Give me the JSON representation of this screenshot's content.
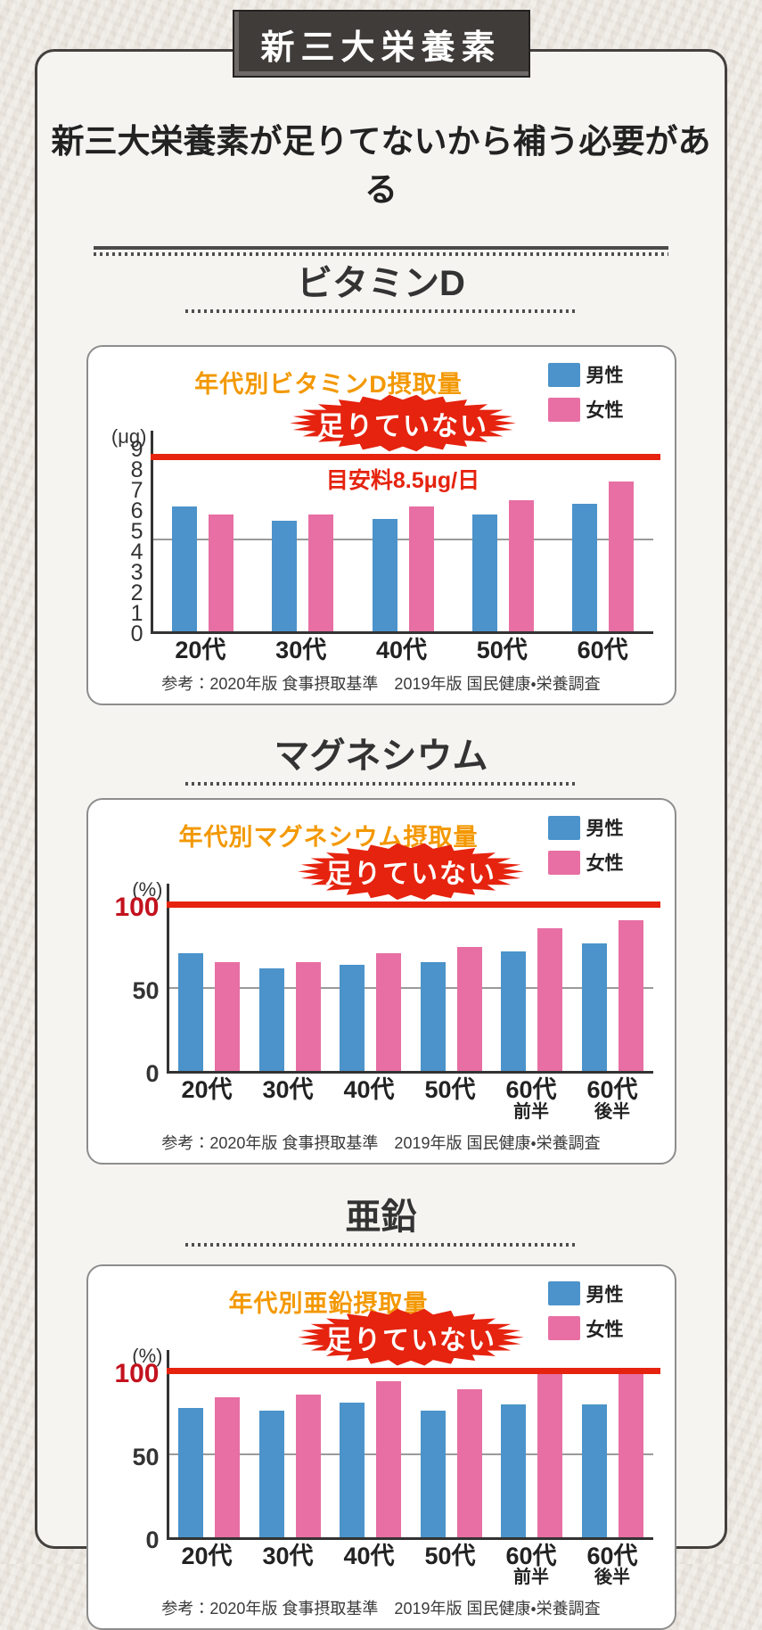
{
  "page": {
    "badge_label": "新三大栄養素",
    "heading": "新三大栄養素が足りてないから補う必要がある"
  },
  "legend": {
    "male_label": "男性",
    "female_label": "女性"
  },
  "colors": {
    "male_blue": "#4b93ca",
    "female_pink": "#e76fa3",
    "title_orange": "#f39800",
    "alert_red": "#e5230f",
    "tick_red_100": "#c3121f"
  },
  "shortage_label": "足りていない",
  "source_note": "参考：2020年版 食事摂取基準　2019年版 国民健康・栄養調査",
  "sections": [
    {
      "title": "ビタミンD",
      "chart_title": "年代別ビタミンD摂取量",
      "threshold_note": "目安料8.5μg/日"
    },
    {
      "title": "マグネシウム",
      "chart_title": "年代別マグネシウム摂取量",
      "threshold_note": ""
    },
    {
      "title": "亜鉛",
      "chart_title": "年代別亜鉛摂取量",
      "threshold_note": ""
    }
  ],
  "chart_data": [
    {
      "type": "bar",
      "title": "年代別ビタミンD摂取量",
      "unit": "(μg)",
      "categories": [
        [
          "20代"
        ],
        [
          "30代"
        ],
        [
          "40代"
        ],
        [
          "50代"
        ],
        [
          "60代"
        ]
      ],
      "series": [
        {
          "name": "男性",
          "values": [
            6.1,
            5.4,
            5.5,
            5.7,
            6.2
          ]
        },
        {
          "name": "女性",
          "values": [
            5.7,
            5.7,
            6.1,
            6.4,
            7.3
          ]
        }
      ],
      "ylim": [
        0,
        9
      ],
      "yticks": [
        0,
        1,
        2,
        3,
        4,
        5,
        6,
        7,
        8,
        9
      ],
      "threshold": 8.5,
      "threshold_label": "目安料8.5μg/日",
      "gridline": 4.5,
      "legend_position": "top-right",
      "annotation": "足りていない"
    },
    {
      "type": "bar",
      "title": "年代別マグネシウム摂取量",
      "unit": "(%)",
      "categories": [
        [
          "20代"
        ],
        [
          "30代"
        ],
        [
          "40代"
        ],
        [
          "50代"
        ],
        [
          "60代",
          "前半"
        ],
        [
          "60代",
          "後半"
        ]
      ],
      "series": [
        {
          "name": "男性",
          "values": [
            71,
            62,
            64,
            66,
            72,
            77
          ]
        },
        {
          "name": "女性",
          "values": [
            66,
            66,
            71,
            75,
            86,
            91
          ]
        }
      ],
      "ylim": [
        0,
        100
      ],
      "yticks": [
        0,
        50,
        100
      ],
      "highlight_tick": 100,
      "threshold": 100,
      "gridline": 50,
      "legend_position": "top-right",
      "annotation": "足りていない"
    },
    {
      "type": "bar",
      "title": "年代別亜鉛摂取量",
      "unit": "(%)",
      "categories": [
        [
          "20代"
        ],
        [
          "30代"
        ],
        [
          "40代"
        ],
        [
          "50代"
        ],
        [
          "60代",
          "前半"
        ],
        [
          "60代",
          "後半"
        ]
      ],
      "series": [
        {
          "name": "男性",
          "values": [
            78,
            76,
            81,
            76,
            80,
            80
          ]
        },
        {
          "name": "女性",
          "values": [
            84,
            86,
            94,
            89,
            100,
            99
          ]
        }
      ],
      "ylim": [
        0,
        100
      ],
      "yticks": [
        0,
        50,
        100
      ],
      "highlight_tick": 100,
      "threshold": 100,
      "gridline": 50,
      "legend_position": "top-right",
      "annotation": "足りていない"
    }
  ]
}
